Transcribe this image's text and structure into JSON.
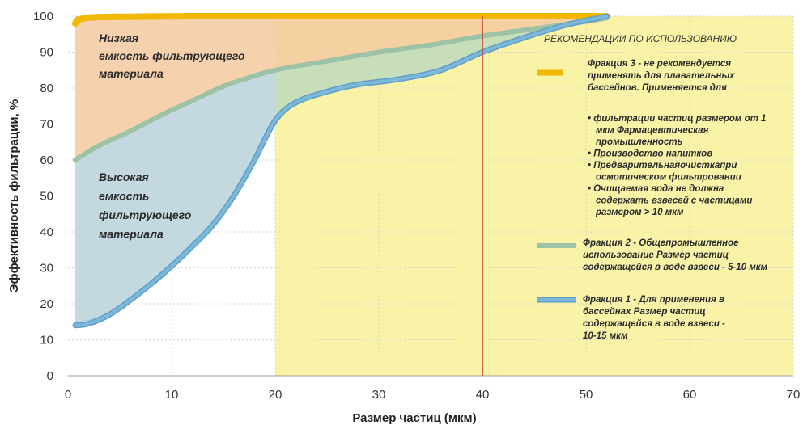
{
  "chart_data": {
    "type": "area",
    "xlabel": "Размер частиц (мкм)",
    "ylabel": "Эффективность фильтрации, %",
    "xlim": [
      0,
      70
    ],
    "ylim": [
      0,
      100
    ],
    "x_ticks": [
      0,
      10,
      20,
      30,
      40,
      50,
      60,
      70
    ],
    "y_ticks": [
      0,
      10,
      20,
      30,
      40,
      50,
      60,
      70,
      80,
      90,
      100
    ],
    "grid": true,
    "shaded_ranges": [
      {
        "x_from": 20,
        "x_to": 70,
        "color": "#f9f3a8"
      }
    ],
    "reference_line": {
      "x": 40,
      "color": "#c0392b"
    },
    "series": [
      {
        "name": "Фракция 3",
        "color": "#f0b800",
        "x": [
          0.7,
          1,
          2,
          4,
          8,
          12,
          16,
          20,
          25,
          30,
          35,
          40,
          45,
          50,
          52
        ],
        "y": [
          98,
          99,
          99.6,
          99.8,
          99.9,
          100,
          100,
          100,
          100,
          100,
          100,
          100,
          100,
          100,
          100
        ]
      },
      {
        "name": "Фракция 2",
        "color": "#9cc3a6",
        "x": [
          0.7,
          3,
          6,
          9,
          12,
          15,
          17,
          20,
          25,
          30,
          35,
          40,
          45,
          50,
          52
        ],
        "y": [
          60,
          64,
          68,
          72.5,
          76.5,
          80.5,
          82.5,
          85,
          87.5,
          90,
          92,
          94.5,
          96.5,
          98.5,
          99.5
        ]
      },
      {
        "name": "Фракция 1",
        "color": "#7bb8da",
        "x": [
          0.7,
          2,
          4,
          6,
          8,
          10,
          12,
          14,
          16,
          18,
          20,
          22,
          25,
          28,
          32,
          36,
          40,
          44,
          48,
          52
        ],
        "y": [
          14,
          14.5,
          17,
          21,
          25.5,
          30.5,
          36,
          42,
          50,
          60,
          71,
          76,
          79,
          81,
          82.5,
          85,
          90,
          94,
          97.5,
          100
        ]
      }
    ],
    "annotations": {
      "top_region": [
        "Низкая",
        "емкость фильтрующего",
        "материала"
      ],
      "bottom_region": [
        "Высокая",
        "емкость",
        "фильтрующего",
        "материала"
      ]
    },
    "legend": {
      "position": "right",
      "heading": "РЕКОМЕНДАЦИИ ПО ИСПОЛЬЗОВАНИЮ",
      "entries": [
        {
          "color": "#f0b800",
          "lines": [
            "Фракция 3 - не рекомендуется",
            "применять для плавательных",
            "бассейнов. Применяется для"
          ],
          "bullets": [
            [
              "• фильтрации частиц размером от 1",
              "мкм Фармацевтическая",
              "промышленность"
            ],
            [
              "• Производство напитков"
            ],
            [
              "• Предварительнаяочисткапри",
              "осмотическом фильтровании"
            ],
            [
              "• Очищаемая вода не должна",
              "содержать взвесей с частицами",
              "размером > 10 мкм"
            ]
          ]
        },
        {
          "color": "#9cc3a6",
          "lines": [
            "Фракция 2 - Общепромышленное",
            "использование Размер частиц",
            "содержащейся в воде взвеси - 5-10 мкм"
          ],
          "bullets": []
        },
        {
          "color": "#7bb8da",
          "lines": [
            "Фракция 1 - Для применения в",
            "бассейнах Размер частиц",
            "содержащейся в воде взвеси -",
            "10-15 мкм"
          ],
          "bullets": []
        }
      ]
    },
    "colors": {
      "top_fill": "#f5c9a0",
      "bottom_fill": "#c3d9df",
      "middle_fill": "#c2dcbb"
    }
  }
}
